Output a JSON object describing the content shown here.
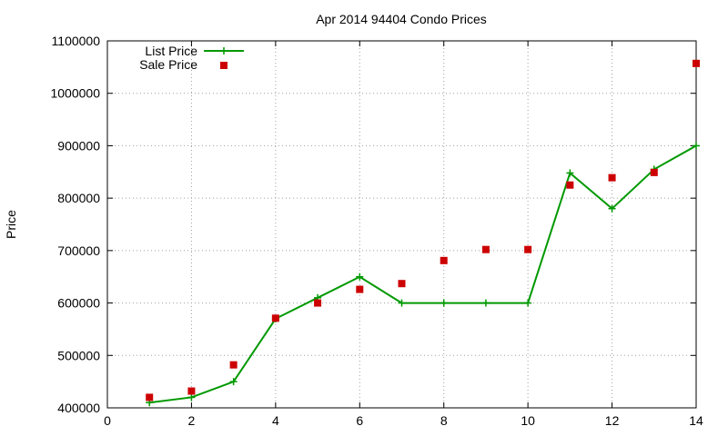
{
  "chart_data": {
    "type": "line",
    "title": "Apr 2014 94404 Condo Prices",
    "xlabel": "",
    "ylabel": "Price",
    "xlim": [
      0,
      14
    ],
    "ylim": [
      400000,
      1100000
    ],
    "xticks": [
      0,
      2,
      4,
      6,
      8,
      10,
      12,
      14
    ],
    "yticks": [
      400000,
      500000,
      600000,
      700000,
      800000,
      900000,
      1000000,
      1100000
    ],
    "grid": true,
    "legend_position": "top-left",
    "series": [
      {
        "name": "List Price",
        "style": "line+cross",
        "color": "#009900",
        "x": [
          1,
          2,
          3,
          4,
          5,
          6,
          7,
          8,
          9,
          10,
          11,
          12,
          13,
          14
        ],
        "y": [
          410000,
          420000,
          450000,
          570000,
          610000,
          650000,
          600000,
          600000,
          600000,
          600000,
          848000,
          780000,
          855000,
          900000
        ]
      },
      {
        "name": "Sale Price",
        "style": "square-points",
        "color": "#cc0000",
        "x": [
          1,
          2,
          3,
          4,
          5,
          6,
          7,
          8,
          9,
          10,
          11,
          12,
          13,
          14
        ],
        "y": [
          420000,
          432000,
          482000,
          571000,
          600000,
          626000,
          637000,
          681000,
          702000,
          702000,
          825000,
          839000,
          849000,
          1057000
        ]
      }
    ]
  }
}
